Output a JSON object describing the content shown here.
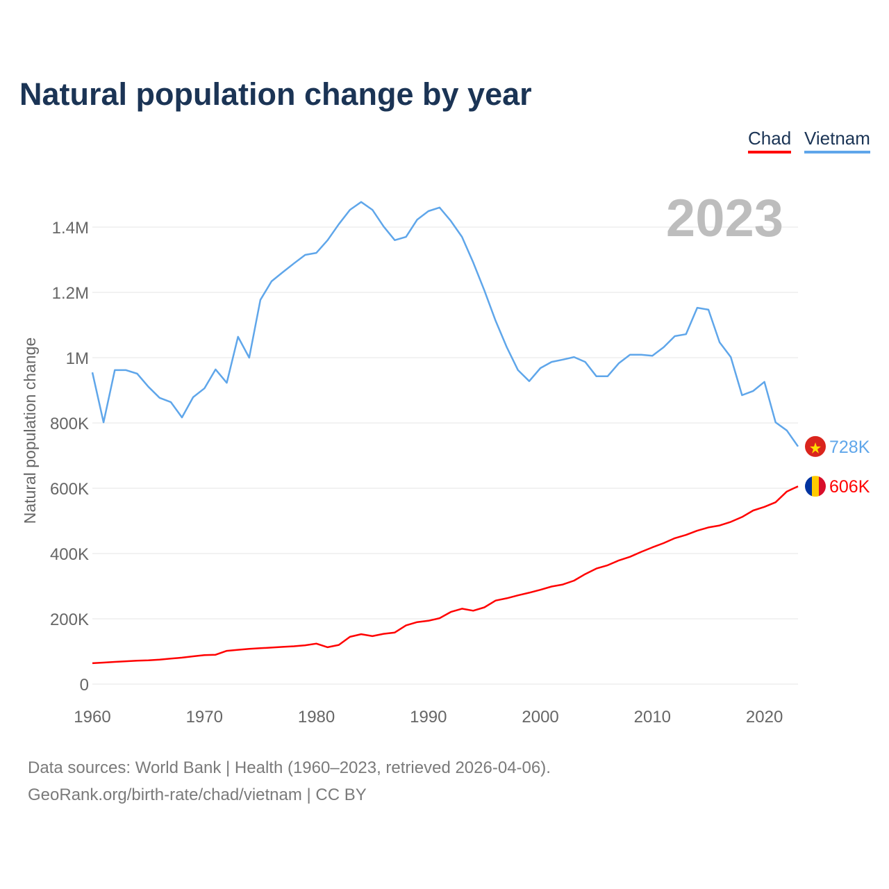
{
  "chart_data": {
    "type": "line",
    "title": "Natural population change by year",
    "ylabel": "Natural population change",
    "xlabel": "",
    "xlim": [
      1960,
      2023
    ],
    "ylim": [
      0,
      1500000
    ],
    "grid": true,
    "legend_position": "top-right",
    "year_label": "2023",
    "x_ticks": [
      1960,
      1970,
      1980,
      1990,
      2000,
      2010,
      2020
    ],
    "x_tick_labels": [
      "1960",
      "1970",
      "1980",
      "1990",
      "2000",
      "2010",
      "2020"
    ],
    "y_ticks": [
      0,
      200000,
      400000,
      600000,
      800000,
      1000000,
      1200000,
      1400000
    ],
    "y_tick_labels": [
      "0",
      "200K",
      "400K",
      "600K",
      "800K",
      "1M",
      "1.2M",
      "1.4M"
    ],
    "x": [
      1960,
      1961,
      1962,
      1963,
      1964,
      1965,
      1966,
      1967,
      1968,
      1969,
      1970,
      1971,
      1972,
      1973,
      1974,
      1975,
      1976,
      1977,
      1978,
      1979,
      1980,
      1981,
      1982,
      1983,
      1984,
      1985,
      1986,
      1987,
      1988,
      1989,
      1990,
      1991,
      1992,
      1993,
      1994,
      1995,
      1996,
      1997,
      1998,
      1999,
      2000,
      2001,
      2002,
      2003,
      2004,
      2005,
      2006,
      2007,
      2008,
      2009,
      2010,
      2011,
      2012,
      2013,
      2014,
      2015,
      2016,
      2017,
      2018,
      2019,
      2020,
      2021,
      2022,
      2023
    ],
    "series": [
      {
        "name": "Chad",
        "color": "#ff0000",
        "end_label": "606K",
        "flag": "chad-flag",
        "values": [
          64000,
          66000,
          68000,
          70000,
          72000,
          73000,
          75000,
          78000,
          81000,
          85000,
          89000,
          90000,
          102000,
          105000,
          108000,
          110000,
          112000,
          114000,
          116000,
          119000,
          124000,
          113000,
          120000,
          145000,
          153000,
          147000,
          154000,
          158000,
          180000,
          190000,
          194000,
          202000,
          221000,
          231000,
          225000,
          235000,
          256000,
          263000,
          272000,
          280000,
          289000,
          299000,
          305000,
          317000,
          337000,
          354000,
          364000,
          379000,
          390000,
          405000,
          419000,
          432000,
          447000,
          457000,
          470000,
          480000,
          486000,
          497000,
          512000,
          532000,
          543000,
          557000,
          590000,
          606000
        ]
      },
      {
        "name": "Vietnam",
        "color": "#5fa6ea",
        "end_label": "728K",
        "flag": "vietnam-flag",
        "values": [
          955000,
          802000,
          962000,
          962000,
          951000,
          911000,
          877000,
          864000,
          817000,
          879000,
          906000,
          964000,
          923000,
          1064000,
          1000000,
          1177000,
          1234000,
          1262000,
          1289000,
          1315000,
          1321000,
          1360000,
          1409000,
          1453000,
          1477000,
          1453000,
          1402000,
          1360000,
          1370000,
          1423000,
          1449000,
          1460000,
          1419000,
          1370000,
          1292000,
          1206000,
          1113000,
          1032000,
          962000,
          928000,
          968000,
          987000,
          994000,
          1002000,
          987000,
          943000,
          943000,
          983000,
          1009000,
          1009000,
          1006000,
          1032000,
          1066000,
          1072000,
          1153000,
          1147000,
          1047000,
          1002000,
          885000,
          898000,
          926000,
          802000,
          777000,
          728000
        ]
      }
    ]
  },
  "footer": {
    "line1": "Data sources: World Bank | Health (1960–2023, retrieved 2026-04-06).",
    "line2": "GeoRank.org/birth-rate/chad/vietnam | CC BY"
  }
}
